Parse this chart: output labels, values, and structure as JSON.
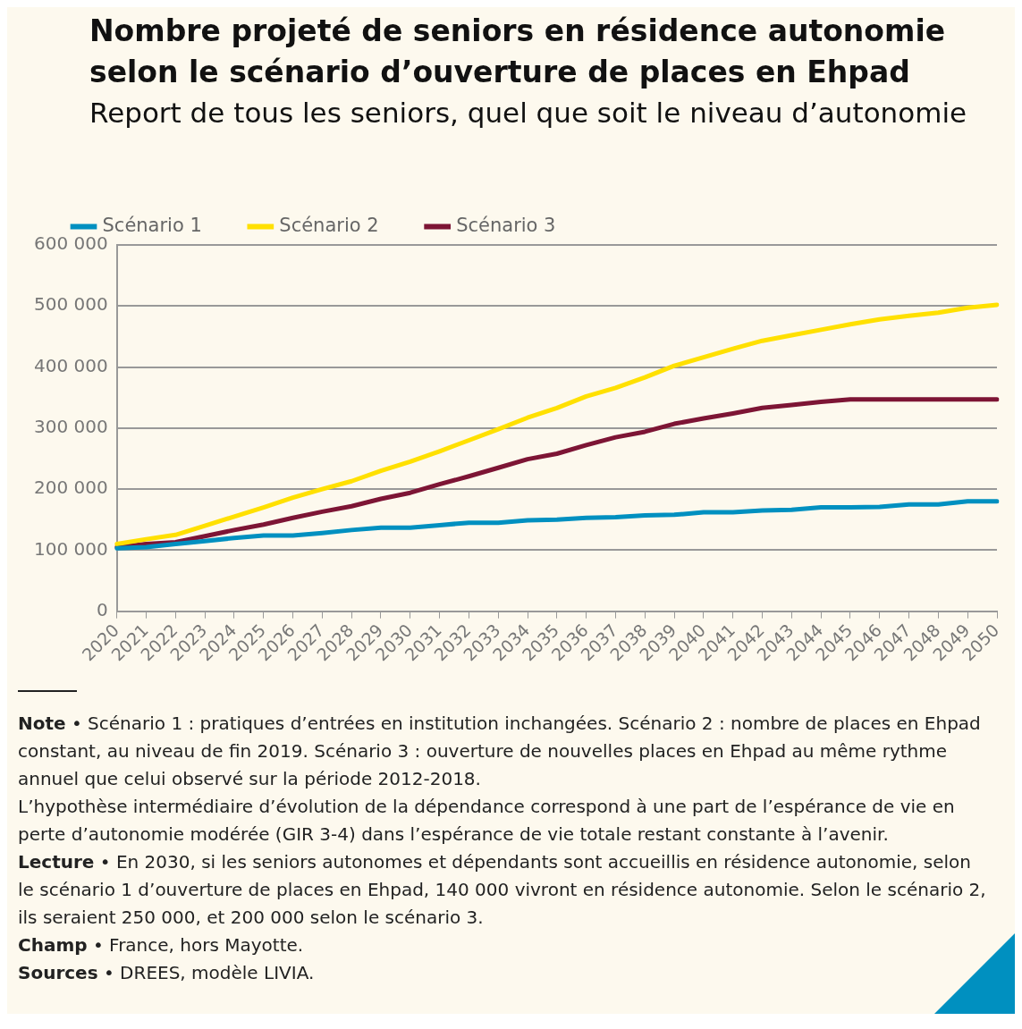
{
  "chart_data": {
    "type": "line",
    "title": "Nombre projeté de seniors en résidence autonomie selon le scénario d’ouverture de places en Ehpad",
    "subtitle": "Report de tous les seniors, quel que soit le niveau d’autonomie",
    "categories": [
      "2020",
      "2021",
      "2022",
      "2023",
      "2024",
      "2025",
      "2026",
      "2027",
      "2028",
      "2029",
      "2030",
      "2031",
      "2032",
      "2033",
      "2034",
      "2035",
      "2036",
      "2037",
      "2038",
      "2039",
      "2040",
      "2041",
      "2042",
      "2043",
      "2044",
      "2045",
      "2046",
      "2047",
      "2048",
      "2049",
      "2050"
    ],
    "series": [
      {
        "name": "Scénario 1",
        "color": "#0090c0",
        "values": [
          103000,
          105000,
          110000,
          115000,
          120000,
          124000,
          124000,
          128000,
          133000,
          137000,
          137000,
          141000,
          145000,
          145000,
          149000,
          150000,
          153000,
          154000,
          157000,
          158000,
          162000,
          162000,
          165000,
          166000,
          170000,
          170000,
          171000,
          175000,
          175000,
          180000,
          180000
        ]
      },
      {
        "name": "Scénario 2",
        "color": "#ffe000",
        "values": [
          110000,
          118000,
          125000,
          140000,
          155000,
          170000,
          186000,
          200000,
          213000,
          230000,
          245000,
          262000,
          280000,
          298000,
          317000,
          333000,
          352000,
          366000,
          383000,
          402000,
          416000,
          430000,
          443000,
          452000,
          461000,
          470000,
          478000,
          484000,
          489000,
          497000,
          502000
        ]
      },
      {
        "name": "Scénario 3",
        "color": "#7d1535",
        "values": [
          105000,
          110000,
          113000,
          123000,
          133000,
          142000,
          153000,
          163000,
          172000,
          184000,
          194000,
          208000,
          221000,
          235000,
          249000,
          258000,
          272000,
          285000,
          294000,
          307000,
          316000,
          324000,
          333000,
          338000,
          343000,
          347000,
          347000,
          347000,
          347000,
          347000,
          347000
        ]
      }
    ],
    "ylim": [
      0,
      600000
    ],
    "yticks": [
      0,
      {
        "value": 100000,
        "label": "100 000"
      },
      {
        "value": 200000,
        "label": "200 000"
      },
      {
        "value": 300000,
        "label": "300 000"
      },
      {
        "value": 400000,
        "label": "400 000"
      },
      {
        "value": 500000,
        "label": "500 000"
      },
      {
        "value": 600000,
        "label": "600 000"
      }
    ],
    "grid": "y",
    "legend": "top",
    "marker": "none",
    "line_style": "solid",
    "annotations": [
      "Note • Scénario 1 : pratiques d’entrées en institution inchangées. Scénario 2 : nombre de places en Ehpad constant, au niveau de fin 2019. Scénario 3 : ouverture de nouvelles places en Ehpad au même rythme annuel que celui observé sur la période 2012-2018.",
      "L’hypothèse intermédiaire d’évolution de la dépendance correspond à une part de l’espérance de vie en perte d’autonomie modérée (GIR 3-4) dans l’espérance de vie totale restant constante à l’avenir.",
      "Lecture • En 2030, si les seniors autonomes et dépendants sont accueillis en résidence autonomie, selon le scénario 1 d’ouverture de places en Ehpad, 140 000 vivront en résidence autonomie. Selon le scénario 2, ils seraient 250 000, et 200 000 selon le scénario 3.",
      "Champ • France, hors Mayotte.",
      "Sources • DREES, modèle LIVIA."
    ]
  }
}
